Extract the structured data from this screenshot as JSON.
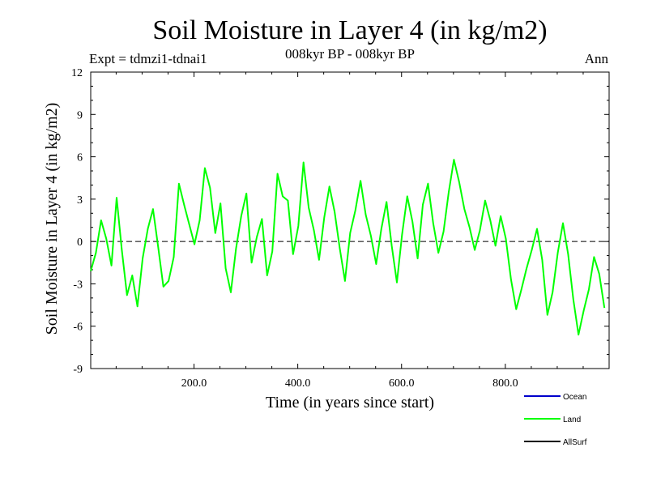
{
  "chart_data": {
    "type": "line",
    "title": "Soil Moisture in Layer 4 (in kg/m2)",
    "subtitle": "008kyr BP - 008kyr BP",
    "experiment_label": "Expt = tdmzi1-tdnai1",
    "season_label": "Ann",
    "xlabel": "Time (in years since start)",
    "ylabel": "Soil Moisture in Layer 4 (in kg/m2)",
    "xlim": [
      1,
      1000
    ],
    "ylim": [
      -9,
      12
    ],
    "x_ticks": [
      200,
      400,
      600,
      800
    ],
    "x_tick_labels": [
      "200.0",
      "400.0",
      "600.0",
      "800.0"
    ],
    "y_ticks": [
      -9,
      -6,
      -3,
      0,
      3,
      6,
      9,
      12
    ],
    "y_tick_labels": [
      "-9",
      "-6",
      "-3",
      "0",
      "3",
      "6",
      "9",
      "12"
    ],
    "zero_line": {
      "y": 0,
      "style": "dashed"
    },
    "legend": [
      {
        "name": "Ocean",
        "color": "#0000cc"
      },
      {
        "name": "Land",
        "color": "#00ff00"
      },
      {
        "name": "AllSurf",
        "color": "#000000"
      }
    ],
    "series": [
      {
        "name": "Land",
        "color": "#00ff00",
        "x_start": 1,
        "x_step": 10,
        "note": "approximate 10-year samples of annual series",
        "values": [
          -2.1,
          -0.8,
          1.5,
          0.2,
          -1.7,
          3.1,
          -0.6,
          -3.8,
          -2.4,
          -4.6,
          -1.2,
          0.9,
          2.3,
          -0.4,
          -3.2,
          -2.8,
          -1.1,
          4.1,
          2.6,
          1.2,
          -0.2,
          1.5,
          5.2,
          3.8,
          0.6,
          2.7,
          -1.9,
          -3.6,
          -0.5,
          1.8,
          3.4,
          -1.5,
          0.3,
          1.6,
          -2.4,
          -0.7,
          4.8,
          3.2,
          2.9,
          -0.9,
          1.1,
          5.6,
          2.4,
          0.8,
          -1.3,
          1.7,
          3.9,
          2.1,
          -0.5,
          -2.8,
          0.6,
          2.2,
          4.3,
          1.9,
          0.4,
          -1.6,
          0.9,
          2.8,
          -0.3,
          -2.9,
          0.5,
          3.2,
          1.4,
          -1.2,
          2.6,
          4.1,
          1.3,
          -0.8,
          0.7,
          3.5,
          5.8,
          4.2,
          2.3,
          1.0,
          -0.6,
          0.8,
          2.9,
          1.5,
          -0.3,
          1.8,
          0.2,
          -2.7,
          -4.8,
          -3.4,
          -1.9,
          -0.6,
          0.9,
          -1.3,
          -5.2,
          -3.6,
          -0.8,
          1.3,
          -0.9,
          -4.1,
          -6.6,
          -4.9,
          -3.4,
          -1.1,
          -2.3,
          -4.7
        ]
      }
    ]
  }
}
